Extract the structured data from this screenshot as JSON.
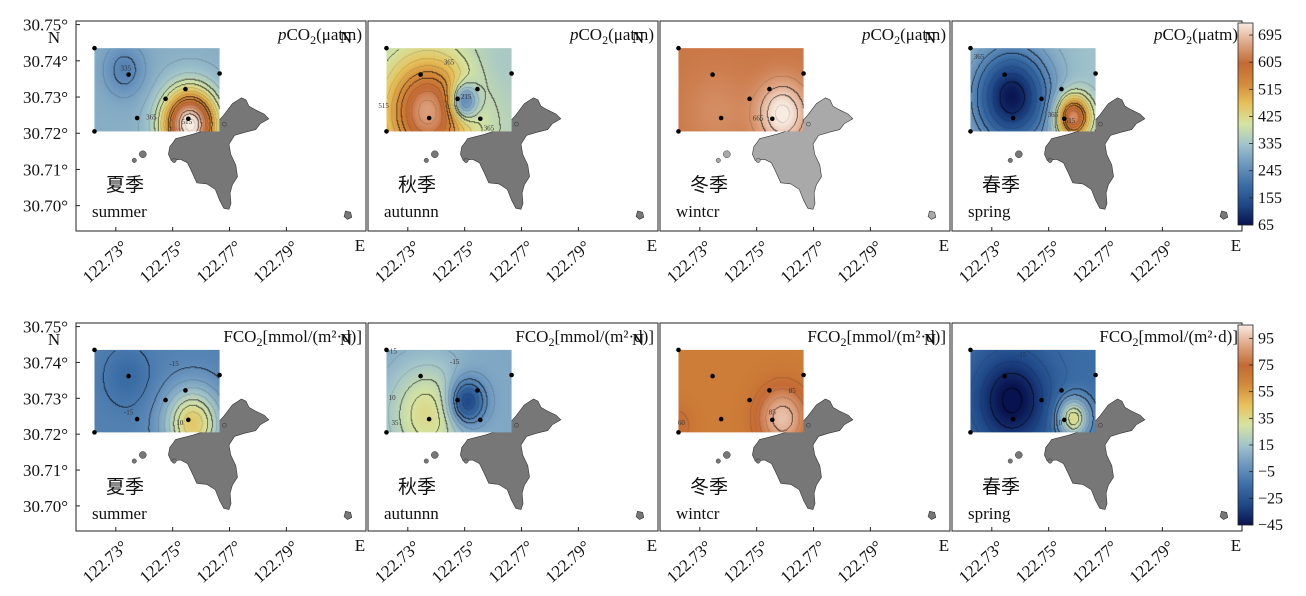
{
  "chart_data": {
    "type": "heatmap",
    "lat_ticks": [
      "30.75°",
      "30.74°",
      "30.73°",
      "30.72°",
      "30.71°",
      "30.70°"
    ],
    "lon_ticks": [
      "122.73°",
      "122.75°",
      "122.77°",
      "122.79°"
    ],
    "lat_axis_label": "N",
    "lon_axis_label": "E",
    "xlim": [
      122.716,
      122.818
    ],
    "ylim": [
      30.693,
      30.751
    ],
    "rows": [
      {
        "quantity": "pCO2",
        "title_prefix": "p",
        "title_main": "CO",
        "title_sub": "2",
        "title_suffix": "(μatm)",
        "colorbar": {
          "ticks": [
            "695",
            "605",
            "515",
            "425",
            "335",
            "245",
            "155",
            "65"
          ],
          "range": [
            65,
            735
          ],
          "colors": [
            "#08124e",
            "#1f4888",
            "#3c6ea6",
            "#6d97bf",
            "#a2c4cb",
            "#d5e4a2",
            "#e7c15a",
            "#d38a3a",
            "#c46a34",
            "#dfa685",
            "#f8ebe2"
          ]
        },
        "panels": [
          {
            "season_cn": "夏季",
            "season_en": "summer",
            "land_tone": "#777777",
            "field": {
              "base": 300,
              "bumps": [
                [
                  122.756,
                  30.7225,
                  450,
                  0.0065
                ],
                [
                  122.733,
                  30.7375,
                  -70,
                  0.005
                ]
              ]
            },
            "contour_labels": [
              {
                "text": "335",
                "lon": 122.7335,
                "lat": 30.7373
              },
              {
                "text": "365",
                "lon": 122.7425,
                "lat": 30.7238
              },
              {
                "text": "515",
                "lon": 122.755,
                "lat": 30.7225
              }
            ]
          },
          {
            "season_cn": "秋季",
            "season_en": "autunnn",
            "land_tone": "#777777",
            "field": {
              "base": 360,
              "bumps": [
                [
                  122.737,
                  30.726,
                  300,
                  0.01
                ],
                [
                  122.7495,
                  30.7288,
                  -230,
                  0.0035
                ],
                [
                  122.764,
                  30.7395,
                  -20,
                  0.008
                ]
              ]
            },
            "contour_labels": [
              {
                "text": "515",
                "lon": 122.7215,
                "lat": 30.727
              },
              {
                "text": "365",
                "lon": 122.7445,
                "lat": 30.739
              },
              {
                "text": "365",
                "lon": 122.7585,
                "lat": 30.7207
              },
              {
                "text": "215",
                "lon": 122.7505,
                "lat": 30.7295
              }
            ]
          },
          {
            "season_cn": "冬季",
            "season_en": "wintcr",
            "land_tone": "#a9a9a9",
            "field": {
              "base": 615,
              "bumps": [
                [
                  122.759,
                  30.7255,
                  130,
                  0.006
                ],
                [
                  122.736,
                  30.726,
                  25,
                  0.008
                ]
              ]
            },
            "contour_labels": [
              {
                "text": "665",
                "lon": 122.7505,
                "lat": 30.7235
              }
            ]
          },
          {
            "season_cn": "春季",
            "season_en": "spring",
            "land_tone": "#777777",
            "field": {
              "base": 330,
              "bumps": [
                [
                  122.737,
                  30.73,
                  -260,
                  0.0095
                ],
                [
                  122.7585,
                  30.7245,
                  330,
                  0.0042
                ]
              ]
            },
            "contour_labels": [
              {
                "text": "365",
                "lon": 122.7255,
                "lat": 30.7405
              },
              {
                "text": "365",
                "lon": 122.7515,
                "lat": 30.7245
              },
              {
                "text": "515",
                "lon": 122.7575,
                "lat": 30.7228
              }
            ]
          }
        ]
      },
      {
        "quantity": "FCO2",
        "title_prefix": "",
        "title_main": "FCO",
        "title_sub": "2",
        "title_suffix": "[mmol/(m²·d)]",
        "colorbar": {
          "ticks": [
            "95",
            "75",
            "55",
            "35",
            "15",
            "−5",
            "−25",
            "−45"
          ],
          "range": [
            -45,
            105
          ],
          "colors": [
            "#08124e",
            "#1f4888",
            "#3c6ea6",
            "#6d97bf",
            "#a2c4cb",
            "#d5e4a2",
            "#e7c15a",
            "#d38a3a",
            "#c46a34",
            "#dfa685",
            "#f8ebe2"
          ]
        },
        "panels": [
          {
            "season_cn": "夏季",
            "season_en": "summer",
            "land_tone": "#777777",
            "field": {
              "base": -8,
              "bumps": [
                [
                  122.757,
                  30.723,
                  50,
                  0.007
                ],
                [
                  122.734,
                  30.736,
                  -8,
                  0.006
                ]
              ]
            },
            "contour_labels": [
              {
                "text": "-15",
                "lon": 122.7505,
                "lat": 30.739
              },
              {
                "text": "-15",
                "lon": 122.7345,
                "lat": 30.7255
              },
              {
                "text": "10",
                "lon": 122.7525,
                "lat": 30.7225
              }
            ]
          },
          {
            "season_cn": "秋季",
            "season_en": "autunnn",
            "land_tone": "#777777",
            "field": {
              "base": 5,
              "bumps": [
                [
                  122.737,
                  30.7255,
                  30,
                  0.01
                ],
                [
                  122.7505,
                  30.729,
                  -45,
                  0.0045
                ]
              ]
            },
            "contour_labels": [
              {
                "text": "-15",
                "lon": 122.7245,
                "lat": 30.7425
              },
              {
                "text": "10",
                "lon": 122.7245,
                "lat": 30.7295
              },
              {
                "text": "35",
                "lon": 122.7255,
                "lat": 30.7225
              },
              {
                "text": "-15",
                "lon": 122.7465,
                "lat": 30.7395
              }
            ]
          },
          {
            "season_cn": "冬季",
            "season_en": "wintcr",
            "land_tone": "#777777",
            "field": {
              "base": 66,
              "bumps": [
                [
                  122.759,
                  30.7245,
                  30,
                  0.006
                ],
                [
                  122.722,
                  30.7225,
                  8,
                  0.004
                ]
              ]
            },
            "contour_labels": [
              {
                "text": "60",
                "lon": 122.7235,
                "lat": 30.7225
              },
              {
                "text": "85",
                "lon": 122.7555,
                "lat": 30.7255
              },
              {
                "text": "85",
                "lon": 122.7625,
                "lat": 30.7315
              }
            ]
          },
          {
            "season_cn": "春季",
            "season_en": "spring",
            "land_tone": "#777777",
            "field": {
              "base": -15,
              "bumps": [
                [
                  122.737,
                  30.7295,
                  -32,
                  0.0095
                ],
                [
                  122.7585,
                  30.7245,
                  52,
                  0.004
                ]
              ]
            },
            "contour_labels": [
              {
                "text": "-15",
                "lon": 122.7405,
                "lat": 30.7415
              },
              {
                "text": "10",
                "lon": 122.7535,
                "lat": 30.7225
              }
            ]
          }
        ]
      }
    ]
  }
}
